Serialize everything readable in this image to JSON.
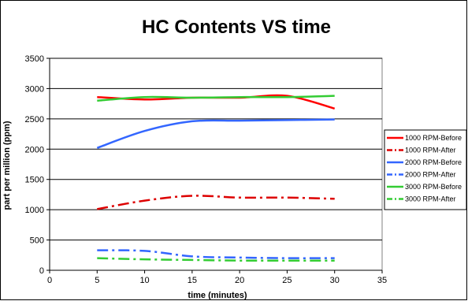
{
  "chart_data": {
    "type": "line",
    "title": "HC Contents VS time",
    "xlabel": "time (minutes)",
    "ylabel": "part per million (ppm)",
    "xlim": [
      0,
      35
    ],
    "ylim": [
      0,
      3500
    ],
    "x_ticks": [
      0,
      5,
      10,
      15,
      20,
      25,
      30,
      35
    ],
    "y_ticks": [
      0,
      500,
      1000,
      1500,
      2000,
      2500,
      3000,
      3500
    ],
    "grid": "horizontal",
    "legend_position": "right",
    "series": [
      {
        "name": "1000 RPM-Before",
        "color": "#ff0000",
        "dash": "solid",
        "x": [
          5,
          10,
          15,
          20,
          25,
          30
        ],
        "y": [
          2860,
          2820,
          2850,
          2850,
          2880,
          2670
        ]
      },
      {
        "name": "1000 RPM-After",
        "color": "#dd0000",
        "dash": "dashdot",
        "x": [
          5,
          10,
          15,
          20,
          25,
          30
        ],
        "y": [
          1010,
          1150,
          1230,
          1200,
          1200,
          1180
        ]
      },
      {
        "name": "2000 RPM-Before",
        "color": "#3366ff",
        "dash": "solid",
        "x": [
          5,
          10,
          15,
          20,
          25,
          30
        ],
        "y": [
          2020,
          2300,
          2460,
          2470,
          2480,
          2490
        ]
      },
      {
        "name": "2000 RPM-After",
        "color": "#3366ff",
        "dash": "dashdot",
        "x": [
          5,
          10,
          15,
          20,
          25,
          30
        ],
        "y": [
          330,
          320,
          230,
          210,
          200,
          200
        ]
      },
      {
        "name": "3000 RPM-Before",
        "color": "#33cc33",
        "dash": "solid",
        "x": [
          5,
          10,
          15,
          20,
          25,
          30
        ],
        "y": [
          2800,
          2860,
          2850,
          2860,
          2860,
          2880
        ]
      },
      {
        "name": "3000 RPM-After",
        "color": "#33cc33",
        "dash": "dashdot",
        "x": [
          5,
          10,
          15,
          20,
          25,
          30
        ],
        "y": [
          200,
          180,
          170,
          160,
          160,
          160
        ]
      }
    ]
  }
}
